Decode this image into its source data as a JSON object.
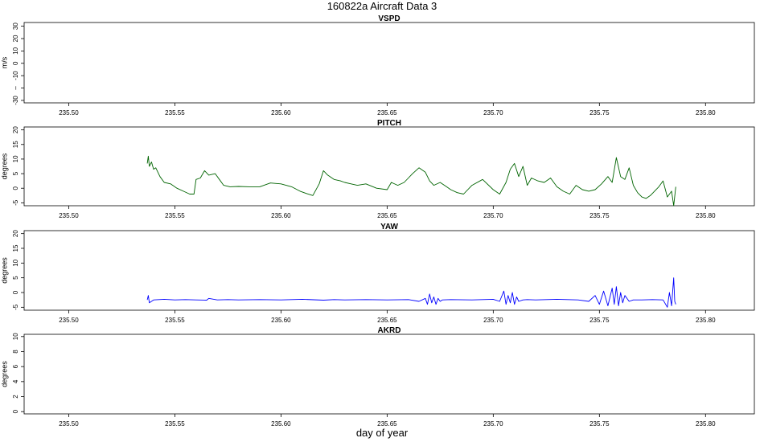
{
  "figure": {
    "title": "160822a   Aircraft Data 3",
    "xlabel": "day of year"
  },
  "chart_data": [
    {
      "type": "line",
      "title": "VSPD",
      "ylabel": "m/s",
      "xlim": [
        235.479,
        235.823
      ],
      "ylim": [
        -32,
        33
      ],
      "xticks": [
        "235.50",
        "235.55",
        "235.60",
        "235.65",
        "235.70",
        "235.75",
        "235.80"
      ],
      "yticks": [
        {
          "v": 30,
          "label": "30"
        },
        {
          "v": 20,
          "label": "20"
        },
        {
          "v": 10,
          "label": "10"
        },
        {
          "v": 0,
          "label": "0"
        },
        {
          "v": -10,
          "label": "-10"
        },
        {
          "v": -20,
          "label": "–"
        },
        {
          "v": -30,
          "label": "-30"
        }
      ],
      "series": [],
      "grid": false
    },
    {
      "type": "line",
      "title": "PITCH",
      "ylabel": "degrees",
      "xlim": [
        235.479,
        235.823
      ],
      "ylim": [
        -6,
        21
      ],
      "xticks": [
        "235.50",
        "235.55",
        "235.60",
        "235.65",
        "235.70",
        "235.75",
        "235.80"
      ],
      "yticks": [
        {
          "v": 20,
          "label": "20"
        },
        {
          "v": 15,
          "label": "15"
        },
        {
          "v": 10,
          "label": "10"
        },
        {
          "v": 5,
          "label": "5"
        },
        {
          "v": 0,
          "label": "0"
        },
        {
          "v": -5,
          "label": "-5"
        }
      ],
      "series": [
        {
          "color": "#006400",
          "x": [
            235.537,
            235.5375,
            235.538,
            235.539,
            235.54,
            235.541,
            235.543,
            235.545,
            235.548,
            235.551,
            235.554,
            235.557,
            235.559,
            235.56,
            235.562,
            235.564,
            235.566,
            235.569,
            235.571,
            235.573,
            235.576,
            235.58,
            235.585,
            235.59,
            235.595,
            235.6,
            235.605,
            235.609,
            235.612,
            235.615,
            235.618,
            235.62,
            235.622,
            235.625,
            235.628,
            235.63,
            235.633,
            235.636,
            235.64,
            235.645,
            235.65,
            235.652,
            235.655,
            235.658,
            235.66,
            235.662,
            235.665,
            235.668,
            235.67,
            235.672,
            235.675,
            235.678,
            235.68,
            235.683,
            235.686,
            235.69,
            235.695,
            235.7,
            235.703,
            235.706,
            235.708,
            235.71,
            235.712,
            235.714,
            235.716,
            235.718,
            235.721,
            235.724,
            235.727,
            235.73,
            235.733,
            235.736,
            235.739,
            235.742,
            235.745,
            235.748,
            235.751,
            235.754,
            235.756,
            235.758,
            235.76,
            235.762,
            235.764,
            235.766,
            235.768,
            235.77,
            235.772,
            235.774,
            235.776,
            235.778,
            235.78,
            235.782,
            235.784,
            235.785,
            235.786
          ],
          "y": [
            8.5,
            11,
            7.5,
            9,
            6.5,
            7,
            4,
            2,
            1.5,
            0,
            -1,
            -2,
            -2,
            3,
            3.5,
            6,
            4.5,
            5,
            3,
            1,
            0.5,
            0.6,
            0.5,
            0.5,
            1.8,
            1.5,
            0.5,
            -1,
            -1.8,
            -2.5,
            1.5,
            6,
            4.5,
            3,
            2.5,
            2,
            1.5,
            1,
            1.5,
            0,
            -0.5,
            2,
            1,
            2,
            3.5,
            5,
            7,
            5.5,
            2.5,
            1,
            2,
            0.5,
            -0.5,
            -1.5,
            -2,
            1,
            3,
            -0.5,
            -2,
            2,
            6.5,
            8.5,
            4,
            7.5,
            1,
            3.5,
            2.5,
            2,
            3.5,
            0.5,
            -1,
            -2,
            1,
            -0.5,
            -1,
            -0.5,
            1.5,
            4,
            2,
            10.5,
            4,
            3,
            7,
            1,
            -1.5,
            -3,
            -3.5,
            -2.5,
            -1,
            0.5,
            2.5,
            -3,
            -1,
            -6,
            0.5
          ]
        }
      ],
      "grid": false
    },
    {
      "type": "line",
      "title": "YAW",
      "ylabel": "degrees",
      "xlim": [
        235.479,
        235.823
      ],
      "ylim": [
        -6,
        21
      ],
      "xticks": [
        "235.50",
        "235.55",
        "235.60",
        "235.65",
        "235.70",
        "235.75",
        "235.80"
      ],
      "yticks": [
        {
          "v": 20,
          "label": "20"
        },
        {
          "v": 15,
          "label": "15"
        },
        {
          "v": 10,
          "label": "10"
        },
        {
          "v": 5,
          "label": "5"
        },
        {
          "v": 0,
          "label": "0"
        },
        {
          "v": -5,
          "label": "-5"
        }
      ],
      "series": [
        {
          "color": "#0000ff",
          "x": [
            235.537,
            235.5375,
            235.538,
            235.54,
            235.545,
            235.55,
            235.555,
            235.56,
            235.565,
            235.566,
            235.57,
            235.575,
            235.58,
            235.59,
            235.6,
            235.61,
            235.62,
            235.625,
            235.63,
            235.64,
            235.65,
            235.66,
            235.665,
            235.668,
            235.669,
            235.67,
            235.671,
            235.672,
            235.673,
            235.674,
            235.675,
            235.676,
            235.68,
            235.69,
            235.7,
            235.703,
            235.705,
            235.706,
            235.707,
            235.708,
            235.709,
            235.71,
            235.711,
            235.712,
            235.714,
            235.716,
            235.72,
            235.73,
            235.74,
            235.745,
            235.748,
            235.75,
            235.752,
            235.754,
            235.756,
            235.757,
            235.758,
            235.759,
            235.76,
            235.761,
            235.762,
            235.764,
            235.766,
            235.77,
            235.775,
            235.78,
            235.782,
            235.783,
            235.784,
            235.785,
            235.7855,
            235.786
          ],
          "y": [
            -2.5,
            -1,
            -3.5,
            -2.5,
            -2.3,
            -2.5,
            -2.4,
            -2.5,
            -2.6,
            -2,
            -2.5,
            -2.4,
            -2.5,
            -2.4,
            -2.5,
            -2.3,
            -2.6,
            -2.4,
            -2.5,
            -2.4,
            -2.5,
            -2.4,
            -3,
            -2,
            -4,
            -0.5,
            -3.5,
            -1.5,
            -4,
            -2,
            -3,
            -2.5,
            -2.4,
            -2.5,
            -2.3,
            -3,
            0.5,
            -4,
            -1,
            -3.5,
            0,
            -4,
            -1.5,
            -3,
            -2.5,
            -2.4,
            -2.5,
            -2.3,
            -2.5,
            -3,
            -1,
            -4,
            0.5,
            -4.5,
            1.5,
            -4,
            2,
            -4.5,
            0,
            -3.5,
            -1,
            -3,
            -2.5,
            -2.5,
            -2.4,
            -2.5,
            -5,
            0,
            -4.5,
            5,
            -3,
            -4
          ]
        }
      ],
      "grid": false
    },
    {
      "type": "line",
      "title": "AKRD",
      "ylabel": "degrees",
      "xlim": [
        235.479,
        235.823
      ],
      "ylim": [
        -0.3,
        10.3
      ],
      "xticks": [
        "235.50",
        "235.55",
        "235.60",
        "235.65",
        "235.70",
        "235.75",
        "235.80"
      ],
      "yticks": [
        {
          "v": 10,
          "label": "10"
        },
        {
          "v": 8,
          "label": "8"
        },
        {
          "v": 6,
          "label": "6"
        },
        {
          "v": 4,
          "label": "4"
        },
        {
          "v": 2,
          "label": "2"
        },
        {
          "v": 0,
          "label": "0"
        }
      ],
      "series": [],
      "grid": false
    }
  ]
}
